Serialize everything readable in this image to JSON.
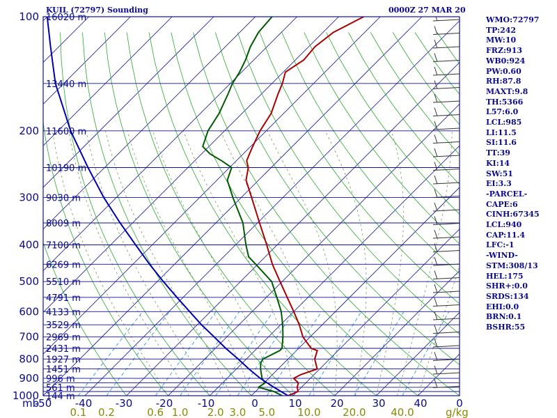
{
  "header": {
    "station": "KUIL (72797) Sounding",
    "valid_time": "0000Z 27 MAR 20"
  },
  "stats": [
    "WMO:72797",
    "TP:242",
    "MW:10",
    "FRZ:913",
    "WB0:924",
    "PW:0.60",
    "RH:87.8",
    "MAXT:9.8",
    "TH:5366",
    "L57:6.0",
    "LCL:985",
    "LI:11.5",
    "SI:11.6",
    "TT:39",
    "KI:14",
    "SW:51",
    "EI:3.3",
    "-PARCEL-",
    "CAPE:6",
    "CINH:67345",
    "LCL:940",
    "CAP:11.4",
    "LFC:-1",
    "-WIND-",
    "STM:308/13",
    "HEL:175",
    "SHR+:0.0",
    "SRDS:134",
    "EHI:0.0",
    "BRN:0.1",
    "BSHR:55"
  ],
  "colors": {
    "frame": "#1010a0",
    "isobar": "#1010a0",
    "isotherm": "#1010a0",
    "dry_adiabat": "#2aa82a",
    "moist_adiabat": "#7a9a5a",
    "mixing_ratio": "#2a9ad8",
    "temperature": "#aa0000",
    "dewpoint": "#005a00",
    "parcel": "#0000aa",
    "wind_barb": "#333333",
    "label_blue": "#0a0a8c",
    "label_olive": "#8a8a00"
  },
  "chart_data": {
    "type": "line",
    "title": "KUIL (72797) Sounding",
    "subtitle": "0000Z 27 MAR 20",
    "xlabel": "",
    "ylabel": "mb",
    "x_unit": "C",
    "y_unit": "mb",
    "y_scale": "log",
    "xlim": [
      -50,
      50
    ],
    "ylim": [
      1000,
      100
    ],
    "isotherm_skew_degrees": 45,
    "grid": true,
    "x_ticks": [
      "-50",
      "-40",
      "-30",
      "-20",
      "-10",
      "0",
      "10",
      "20",
      "30",
      "40",
      "0"
    ],
    "y_ticks": [
      "100",
      "200",
      "300",
      "400",
      "500",
      "600",
      "700",
      "800",
      "900",
      "1000"
    ],
    "pressure_levels": [
      100,
      150,
      200,
      250,
      300,
      350,
      400,
      450,
      500,
      550,
      600,
      650,
      700,
      750,
      800,
      850,
      900,
      925,
      950,
      975,
      1000
    ],
    "height_labels": [
      {
        "p": 100,
        "label": "16020 m"
      },
      {
        "p": 150,
        "label": "13440 m"
      },
      {
        "p": 200,
        "label": "11600 m"
      },
      {
        "p": 250,
        "label": "10190 m"
      },
      {
        "p": 300,
        "label": "9030 m"
      },
      {
        "p": 350,
        "label": "8009 m"
      },
      {
        "p": 400,
        "label": "7100 m"
      },
      {
        "p": 450,
        "label": "6269 m"
      },
      {
        "p": 500,
        "label": "5510 m"
      },
      {
        "p": 550,
        "label": "4791 m"
      },
      {
        "p": 600,
        "label": "4133 m"
      },
      {
        "p": 650,
        "label": "3529 m"
      },
      {
        "p": 700,
        "label": "2969 m"
      },
      {
        "p": 750,
        "label": "2431 m"
      },
      {
        "p": 800,
        "label": "1927 m"
      },
      {
        "p": 850,
        "label": "1451 m"
      },
      {
        "p": 900,
        "label": "996 m"
      },
      {
        "p": 950,
        "label": "561 m"
      },
      {
        "p": 1000,
        "label": "144 m"
      }
    ],
    "mixing_ratio_labels": [
      {
        "w": 0.1,
        "label": "0.1"
      },
      {
        "w": 0.2,
        "label": "0.2"
      },
      {
        "w": 0.6,
        "label": "0.6"
      },
      {
        "w": 1.0,
        "label": "1.0"
      },
      {
        "w": 2.0,
        "label": "2.0"
      },
      {
        "w": 3.0,
        "label": "3.0"
      },
      {
        "w": 5.0,
        "label": "5.0"
      },
      {
        "w": 10.0,
        "label": "10.0"
      },
      {
        "w": 20.0,
        "label": "20.0"
      },
      {
        "w": 40.0,
        "label": "40.0"
      }
    ],
    "mixing_ratio_unit": "g/kg",
    "series": [
      {
        "name": "temperature",
        "points": [
          {
            "p": 1000,
            "t": 8.8
          },
          {
            "p": 975,
            "t": 10.2
          },
          {
            "p": 950,
            "t": 9.0
          },
          {
            "p": 925,
            "t": 8.2
          },
          {
            "p": 900,
            "t": 6.0
          },
          {
            "p": 880,
            "t": 6.8
          },
          {
            "p": 850,
            "t": 9.4
          },
          {
            "p": 800,
            "t": 6.4
          },
          {
            "p": 760,
            "t": 5.0
          },
          {
            "p": 750,
            "t": 3.0
          },
          {
            "p": 700,
            "t": -1.7
          },
          {
            "p": 650,
            "t": -5.5
          },
          {
            "p": 600,
            "t": -10.0
          },
          {
            "p": 550,
            "t": -15.0
          },
          {
            "p": 500,
            "t": -20.5
          },
          {
            "p": 450,
            "t": -26.5
          },
          {
            "p": 400,
            "t": -32.5
          },
          {
            "p": 350,
            "t": -39.5
          },
          {
            "p": 300,
            "t": -47.5
          },
          {
            "p": 270,
            "t": -53.0
          },
          {
            "p": 250,
            "t": -55.5
          },
          {
            "p": 240,
            "t": -57.5
          },
          {
            "p": 230,
            "t": -58.5
          },
          {
            "p": 220,
            "t": -59.5
          },
          {
            "p": 200,
            "t": -61.5
          },
          {
            "p": 180,
            "t": -63.0
          },
          {
            "p": 160,
            "t": -66.0
          },
          {
            "p": 150,
            "t": -67.5
          },
          {
            "p": 140,
            "t": -69.5
          },
          {
            "p": 130,
            "t": -68.0
          },
          {
            "p": 120,
            "t": -68.5
          },
          {
            "p": 110,
            "t": -67.5
          },
          {
            "p": 100,
            "t": -64.0
          }
        ]
      },
      {
        "name": "dewpoint",
        "points": [
          {
            "p": 1000,
            "t": 7.4
          },
          {
            "p": 975,
            "t": 4.4
          },
          {
            "p": 950,
            "t": -0.3
          },
          {
            "p": 925,
            "t": 0.2
          },
          {
            "p": 900,
            "t": -1.6
          },
          {
            "p": 850,
            "t": -4.2
          },
          {
            "p": 820,
            "t": -5.6
          },
          {
            "p": 800,
            "t": -6.0
          },
          {
            "p": 760,
            "t": -4.0
          },
          {
            "p": 750,
            "t": -4.0
          },
          {
            "p": 700,
            "t": -6.5
          },
          {
            "p": 650,
            "t": -9.5
          },
          {
            "p": 600,
            "t": -13.0
          },
          {
            "p": 550,
            "t": -17.5
          },
          {
            "p": 500,
            "t": -22.5
          },
          {
            "p": 450,
            "t": -30.5
          },
          {
            "p": 430,
            "t": -34.0
          },
          {
            "p": 400,
            "t": -37.5
          },
          {
            "p": 350,
            "t": -43.5
          },
          {
            "p": 300,
            "t": -52.0
          },
          {
            "p": 270,
            "t": -57.5
          },
          {
            "p": 250,
            "t": -59.5
          },
          {
            "p": 240,
            "t": -63.5
          },
          {
            "p": 230,
            "t": -68.0
          },
          {
            "p": 220,
            "t": -71.5
          },
          {
            "p": 200,
            "t": -74.0
          },
          {
            "p": 180,
            "t": -75.5
          },
          {
            "p": 160,
            "t": -78.0
          },
          {
            "p": 150,
            "t": -79.5
          },
          {
            "p": 140,
            "t": -80.5
          },
          {
            "p": 130,
            "t": -82.0
          },
          {
            "p": 120,
            "t": -84.0
          },
          {
            "p": 110,
            "t": -85.5
          },
          {
            "p": 100,
            "t": -86.0
          }
        ]
      },
      {
        "name": "parcel",
        "points": [
          {
            "p": 1000,
            "t": 8.8
          },
          {
            "p": 950,
            "t": 3.4
          },
          {
            "p": 900,
            "t": -2.0
          },
          {
            "p": 850,
            "t": -7.0
          },
          {
            "p": 800,
            "t": -12.0
          },
          {
            "p": 750,
            "t": -17.5
          },
          {
            "p": 700,
            "t": -23.0
          },
          {
            "p": 650,
            "t": -29.0
          },
          {
            "p": 600,
            "t": -35.0
          },
          {
            "p": 550,
            "t": -41.5
          },
          {
            "p": 500,
            "t": -48.5
          },
          {
            "p": 450,
            "t": -56.0
          },
          {
            "p": 400,
            "t": -64.0
          },
          {
            "p": 350,
            "t": -73.0
          },
          {
            "p": 300,
            "t": -83.0
          },
          {
            "p": 250,
            "t": -94.0
          },
          {
            "p": 200,
            "t": -107.0
          },
          {
            "p": 150,
            "t": -122.0
          },
          {
            "p": 120,
            "t": -132.0
          },
          {
            "p": 100,
            "t": -140.0
          }
        ]
      }
    ]
  }
}
